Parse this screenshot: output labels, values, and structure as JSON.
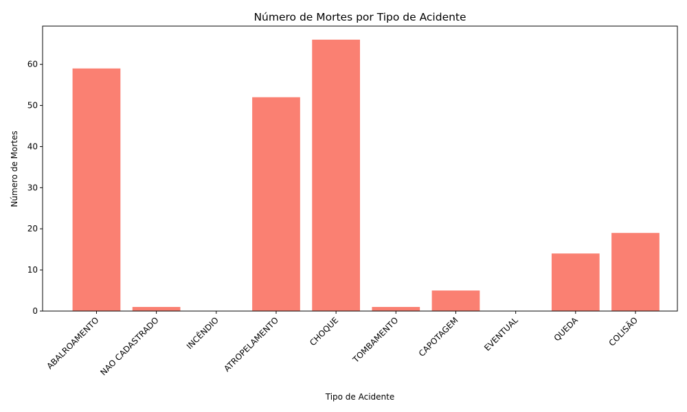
{
  "chart_data": {
    "type": "bar",
    "title": "Número de Mortes por Tipo de Acidente",
    "xlabel": "Tipo de Acidente",
    "ylabel": "Número de Mortes",
    "categories": [
      "ABALROAMENTO",
      "NAO CADASTRADO",
      "INCÊNDIO",
      "ATROPELAMENTO",
      "CHOQUE",
      "TOMBAMENTO",
      "CAPOTAGEM",
      "EVENTUAL",
      "QUEDA",
      "COLISÃO"
    ],
    "values": [
      59,
      1,
      0,
      52,
      66,
      1,
      5,
      0,
      14,
      19
    ],
    "ylim": [
      0,
      69.3
    ],
    "yticks": [
      0,
      10,
      20,
      30,
      40,
      50,
      60
    ],
    "bar_color": "#fa8072",
    "grid": false,
    "legend": "none"
  }
}
